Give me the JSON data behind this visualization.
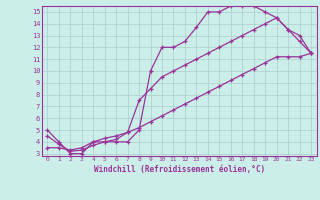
{
  "line1_x": [
    0,
    1,
    2,
    3,
    4,
    5,
    6,
    7,
    8,
    9,
    10,
    11,
    12,
    13,
    14,
    15,
    16,
    17,
    18,
    19,
    20,
    21,
    22,
    23
  ],
  "line1_y": [
    5,
    4,
    3,
    3,
    4,
    4,
    4,
    4,
    5,
    10,
    12,
    12,
    12.5,
    13.7,
    15,
    15,
    15.5,
    15.5,
    15.5,
    15,
    14.5,
    13.5,
    12.5,
    11.5
  ],
  "line2_x": [
    0,
    1,
    2,
    3,
    4,
    5,
    6,
    7,
    8,
    9,
    10,
    11,
    12,
    13,
    14,
    15,
    16,
    17,
    18,
    19,
    20,
    21,
    22,
    23
  ],
  "line2_y": [
    4.5,
    3.8,
    3.2,
    3.3,
    3.7,
    4,
    4.2,
    4.8,
    7.5,
    8.5,
    9.5,
    10,
    10.5,
    11,
    11.5,
    12,
    12.5,
    13,
    13.5,
    14,
    14.5,
    13.5,
    13,
    11.5
  ],
  "line3_x": [
    0,
    1,
    2,
    3,
    4,
    5,
    6,
    7,
    8,
    9,
    10,
    11,
    12,
    13,
    14,
    15,
    16,
    17,
    18,
    19,
    20,
    21,
    22,
    23
  ],
  "line3_y": [
    3.5,
    3.5,
    3.3,
    3.5,
    4,
    4.3,
    4.5,
    4.8,
    5.2,
    5.7,
    6.2,
    6.7,
    7.2,
    7.7,
    8.2,
    8.7,
    9.2,
    9.7,
    10.2,
    10.7,
    11.2,
    11.2,
    11.2,
    11.5
  ],
  "color": "#993399",
  "bg_color": "#cceee8",
  "grid_color": "#aacccc",
  "xlabel": "Windchill (Refroidissement éolien,°C)",
  "xlim_min": -0.5,
  "xlim_max": 23.5,
  "ylim_min": 2.8,
  "ylim_max": 15.5,
  "xticks": [
    0,
    1,
    2,
    3,
    4,
    5,
    6,
    7,
    8,
    9,
    10,
    11,
    12,
    13,
    14,
    15,
    16,
    17,
    18,
    19,
    20,
    21,
    22,
    23
  ],
  "yticks": [
    3,
    4,
    5,
    6,
    7,
    8,
    9,
    10,
    11,
    12,
    13,
    14,
    15
  ],
  "marker": "+"
}
